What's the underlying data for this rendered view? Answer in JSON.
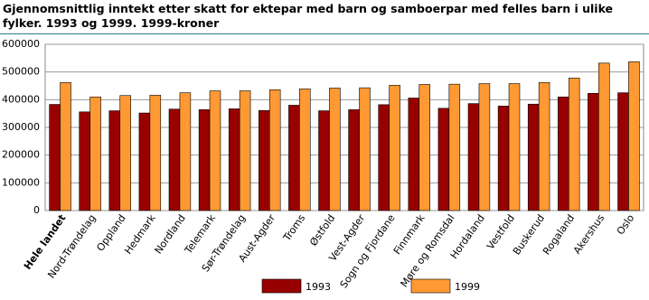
{
  "chart_data": {
    "type": "bar",
    "title": "Gjennomsnittlig inntekt etter skatt for ektepar med barn og samboerpar med felles barn i ulike fylker. 1993 og 1999. 1999-kroner",
    "categories": [
      "Hele landet",
      "Nord-Trøndelag",
      "Oppland",
      "Hedmark",
      "Nordland",
      "Telemark",
      "Sør-Trøndelag",
      "Aust-Agder",
      "Troms",
      "Østfold",
      "Vest-Agder",
      "Sogn og Fjordane",
      "Finnmark",
      "Møre og Romsdal",
      "Hordaland",
      "Vestfold",
      "Buskerud",
      "Rogaland",
      "Akershus",
      "Oslo"
    ],
    "series": [
      {
        "name": "1993",
        "color": "#990000",
        "values": [
          383000,
          356000,
          360000,
          352000,
          366000,
          364000,
          367000,
          361000,
          380000,
          360000,
          364000,
          382000,
          406000,
          369000,
          386000,
          377000,
          384000,
          410000,
          423000,
          425000
        ]
      },
      {
        "name": "1999",
        "color": "#ff9933",
        "values": [
          462000,
          410000,
          415000,
          416000,
          425000,
          432000,
          432000,
          436000,
          439000,
          442000,
          443000,
          452000,
          455000,
          456000,
          458000,
          458000,
          462000,
          478000,
          532000,
          537000
        ]
      }
    ],
    "ylim": [
      0,
      600000
    ],
    "yticks": [
      0,
      100000,
      200000,
      300000,
      400000,
      500000,
      600000
    ],
    "grid": true
  }
}
